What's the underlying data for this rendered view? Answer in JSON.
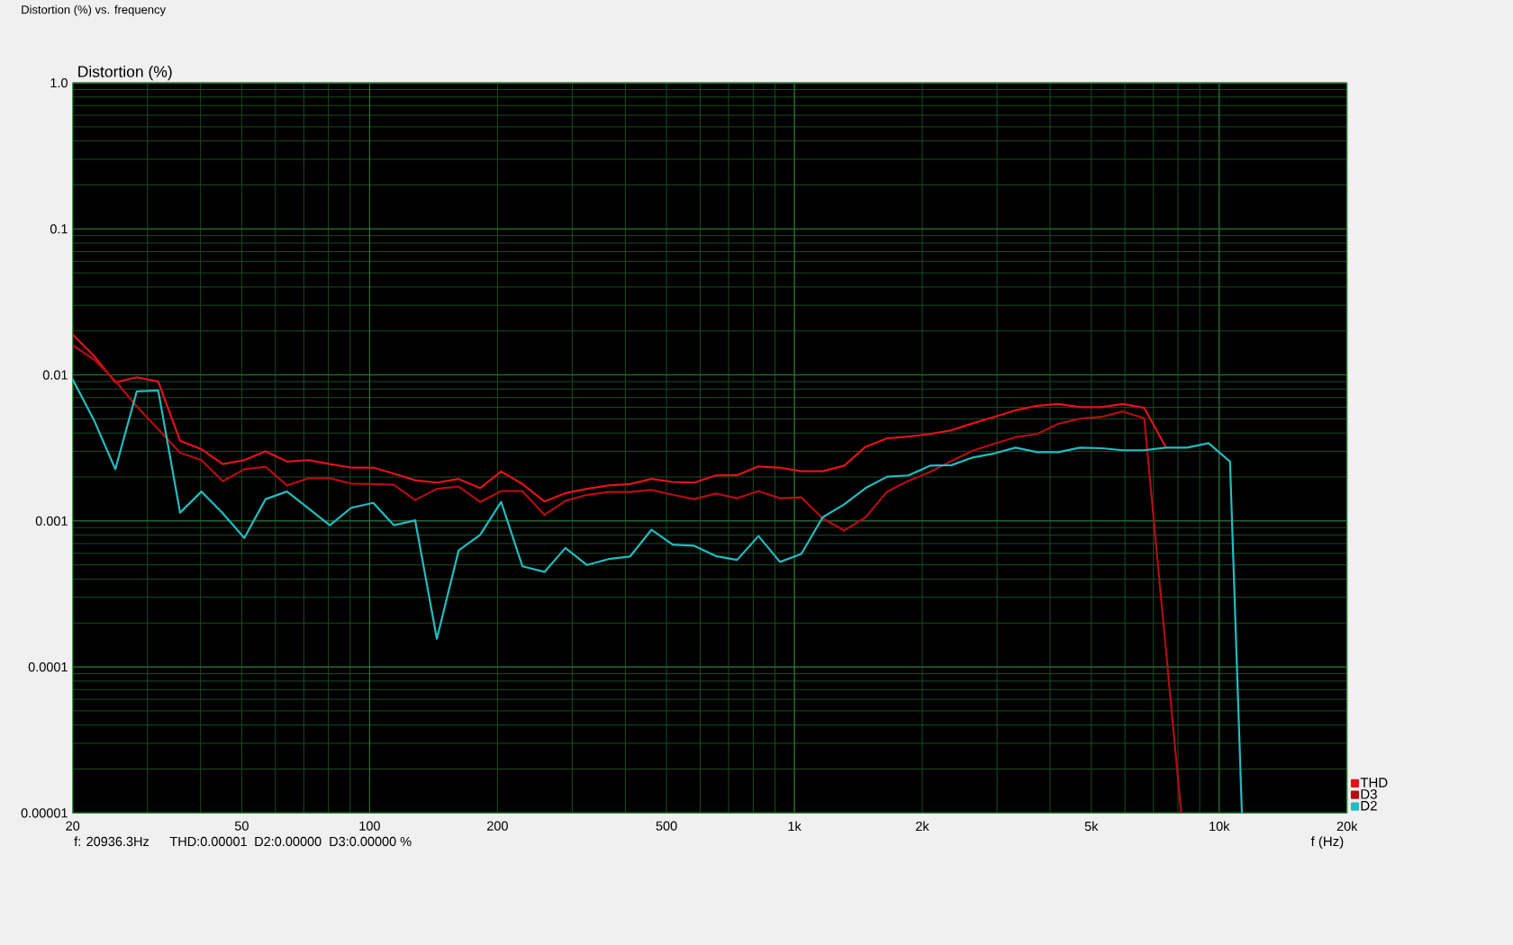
{
  "chart_data": {
    "type": "line",
    "title": "Distortion (%) vs. frequency",
    "xlabel": "f (Hz)",
    "ylabel": "Distortion (%)",
    "log": "xy",
    "xlim": [
      20,
      20000
    ],
    "ylim": [
      1e-05,
      1
    ],
    "xticks": [
      20,
      50,
      100,
      200,
      500,
      {
        "value": 1000,
        "label": "1k"
      },
      {
        "value": 2000,
        "label": "2k"
      },
      {
        "value": 5000,
        "label": "5k"
      },
      {
        "value": 10000,
        "label": "10k"
      },
      {
        "value": 20000,
        "label": "20k"
      }
    ],
    "yticks": [
      {
        "value": 1e-05,
        "label": "0.00001"
      },
      {
        "value": 0.0001,
        "label": "0.0001"
      },
      0.001,
      0.01,
      0.1,
      {
        "value": 1,
        "label": "1.0"
      }
    ],
    "grid": true,
    "legend": "bottom right",
    "annotations": [
      "f: 20936.3Hz",
      "THD:0.00001",
      "D2:0.00000",
      "D3:0.00000 %"
    ],
    "series": [
      {
        "name": "THD",
        "color": "#e3121b",
        "x": [
          20,
          22.5,
          25.2,
          28.3,
          31.8,
          35.8,
          40.2,
          45.1,
          50.7,
          56.9,
          63.9,
          71.8,
          80.6,
          90.5,
          102,
          114,
          128,
          144,
          162,
          182,
          204,
          229,
          258,
          289,
          325,
          365,
          410,
          461,
          517,
          581,
          653,
          733,
          823,
          925,
          1038,
          1166,
          1310,
          1471,
          1653,
          1856,
          2085,
          2342,
          2630,
          2954,
          3318,
          3727,
          4186,
          4702,
          5281,
          5932,
          6662,
          7483
        ],
        "values": [
          0.0189,
          0.0134,
          0.00889,
          0.00963,
          0.00902,
          0.00354,
          0.0031,
          0.00245,
          0.00261,
          0.003,
          0.00255,
          0.00261,
          0.00245,
          0.00232,
          0.00232,
          0.00211,
          0.0019,
          0.00183,
          0.00194,
          0.00168,
          0.00218,
          0.00179,
          0.00136,
          0.00155,
          0.00166,
          0.00175,
          0.00179,
          0.00194,
          0.00185,
          0.00183,
          0.00205,
          0.00206,
          0.00236,
          0.00232,
          0.00219,
          0.00219,
          0.00239,
          0.00322,
          0.00368,
          0.00378,
          0.00394,
          0.00418,
          0.00466,
          0.00516,
          0.00573,
          0.00615,
          0.00633,
          0.00601,
          0.00601,
          0.00633,
          0.00595,
          0.00322
        ]
      },
      {
        "name": "D3",
        "color": "#b30d12",
        "x": [
          20,
          22.5,
          25.2,
          28.3,
          31.8,
          35.8,
          40.2,
          45.1,
          50.7,
          56.9,
          63.9,
          71.8,
          80.6,
          90.5,
          102,
          114,
          128,
          144,
          162,
          182,
          204,
          229,
          258,
          289,
          325,
          365,
          410,
          461,
          517,
          581,
          653,
          733,
          823,
          925,
          1038,
          1166,
          1310,
          1471,
          1653,
          1856,
          2085,
          2342,
          2630,
          2954,
          3318,
          3727,
          4186,
          4702,
          5281,
          5932,
          6662,
          8140
        ],
        "values": [
          0.016,
          0.0127,
          0.0091,
          0.0061,
          0.00424,
          0.00293,
          0.00261,
          0.00187,
          0.00226,
          0.00235,
          0.00175,
          0.00196,
          0.00196,
          0.0018,
          0.00179,
          0.00177,
          0.00139,
          0.00166,
          0.00172,
          0.00135,
          0.0016,
          0.0016,
          0.0011,
          0.00137,
          0.00151,
          0.00158,
          0.00158,
          0.00163,
          0.00151,
          0.00141,
          0.00154,
          0.00143,
          0.0016,
          0.00143,
          0.00145,
          0.00104,
          0.000859,
          0.00106,
          0.00159,
          0.00188,
          0.00216,
          0.00257,
          0.00303,
          0.00338,
          0.00375,
          0.00394,
          0.00463,
          0.00502,
          0.00516,
          0.00562,
          0.00505,
          1e-05
        ]
      },
      {
        "name": "D2",
        "color": "#22bcc0",
        "x": [
          20,
          22.5,
          25.2,
          28.3,
          31.8,
          35.8,
          40.2,
          45.1,
          50.7,
          56.9,
          63.9,
          71.8,
          80.6,
          90.5,
          102,
          114,
          128,
          144,
          162,
          182,
          204,
          229,
          258,
          289,
          325,
          365,
          410,
          461,
          517,
          581,
          653,
          733,
          823,
          925,
          1038,
          1166,
          1310,
          1471,
          1653,
          1856,
          2085,
          2342,
          2630,
          2954,
          3318,
          3727,
          4186,
          4702,
          5281,
          5932,
          6662,
          7483,
          8405,
          9441,
          10604,
          11310
        ],
        "values": [
          0.00931,
          0.00483,
          0.00226,
          0.00771,
          0.00782,
          0.00114,
          0.00159,
          0.00113,
          0.000764,
          0.00141,
          0.00159,
          0.00122,
          0.000935,
          0.00123,
          0.00133,
          0.000935,
          0.00101,
          0.000156,
          0.000627,
          0.000802,
          0.00135,
          0.000489,
          0.000448,
          0.000653,
          0.000499,
          0.000548,
          0.00057,
          0.000871,
          0.000688,
          0.000676,
          0.000575,
          0.000541,
          0.000788,
          0.000524,
          0.000594,
          0.00106,
          0.0013,
          0.00168,
          0.00201,
          0.00205,
          0.00239,
          0.00241,
          0.00272,
          0.0029,
          0.00318,
          0.00296,
          0.00296,
          0.00318,
          0.00315,
          0.00305,
          0.00305,
          0.00318,
          0.00318,
          0.00341,
          0.00255,
          1e-05
        ]
      }
    ]
  }
}
